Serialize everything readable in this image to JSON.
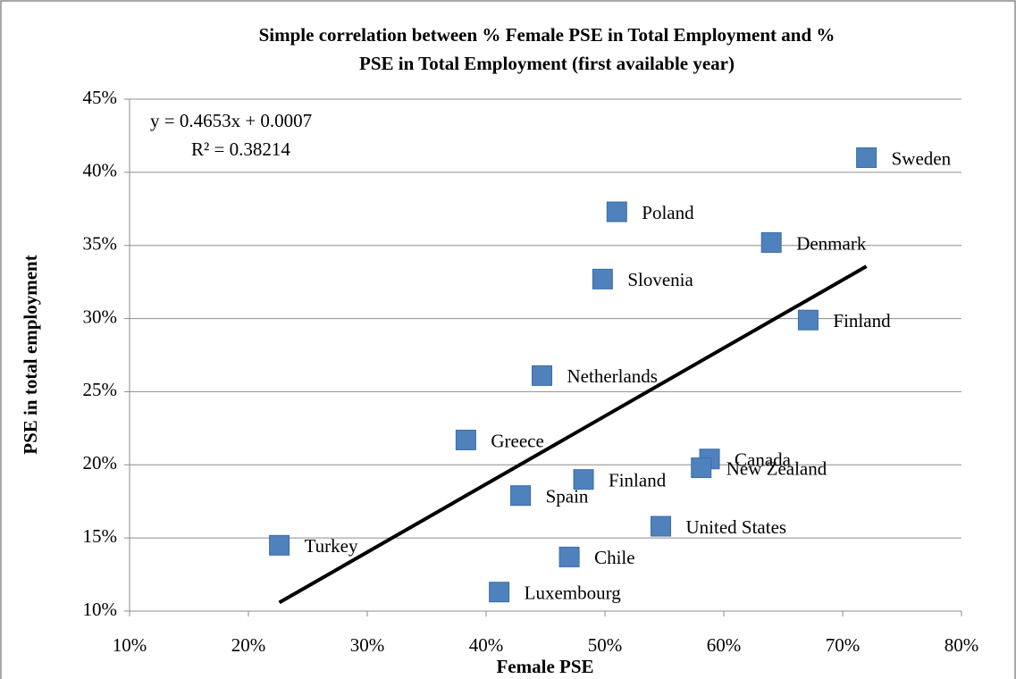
{
  "chart_data": {
    "type": "scatter",
    "title": [
      "Simple correlation between % Female PSE in Total Employment and %",
      "PSE in Total Employment (first available year)"
    ],
    "x_label": "Female PSE",
    "y_label": "PSE in total employment",
    "color": "#4f81bd",
    "categories": [
      "Sweden",
      "Poland",
      "Denmark",
      "Slovenia",
      "Finland",
      "Netherlands",
      "Greece",
      "Canada",
      "New Zealand",
      "Finland",
      "Spain",
      "United States",
      "Turkey",
      "Chile",
      "Luxembourg"
    ],
    "x": [
      72,
      51,
      64,
      49.8,
      67.1,
      44.7,
      38.3,
      58.8,
      58.1,
      48.2,
      42.9,
      54.7,
      22.6,
      47,
      41.1
    ],
    "values": [
      41,
      37.3,
      35.2,
      32.7,
      29.9,
      26.1,
      21.7,
      20.4,
      19.8,
      19,
      17.9,
      15.8,
      14.5,
      13.7,
      11.3
    ],
    "xlim": [
      10,
      80
    ],
    "ylim": [
      10,
      45
    ],
    "xticks": [
      {
        "value": 10,
        "label": "10%"
      },
      {
        "value": 20,
        "label": "20%"
      },
      {
        "value": 30,
        "label": "30%"
      },
      {
        "value": 40,
        "label": "40%"
      },
      {
        "value": 50,
        "label": "50%"
      },
      {
        "value": 60,
        "label": "60%"
      },
      {
        "value": 70,
        "label": "70%"
      },
      {
        "value": 80,
        "label": "80%"
      }
    ],
    "yticks": [
      {
        "value": 10,
        "label": "10%"
      },
      {
        "value": 15,
        "label": "15%"
      },
      {
        "value": 20,
        "label": "20%"
      },
      {
        "value": 25,
        "label": "25%"
      },
      {
        "value": 30,
        "label": "30%"
      },
      {
        "value": 35,
        "label": "35%"
      },
      {
        "value": 40,
        "label": "40%"
      },
      {
        "value": 45,
        "label": "45%"
      }
    ],
    "grid": true,
    "trendline": {
      "equation": "y = 0.4653x + 0.0007",
      "r_squared": "R² = 0.38214",
      "slope": 0.4653,
      "intercept": 0.0007
    }
  }
}
